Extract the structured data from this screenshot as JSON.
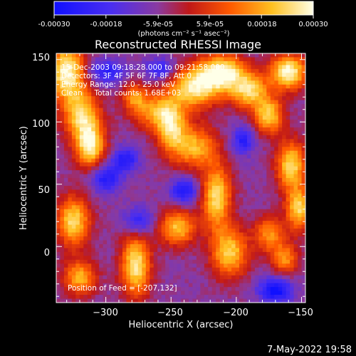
{
  "colorbar": {
    "tick_labels": [
      "-0.00030",
      "-0.00018",
      "-5.9e-05",
      "5.9e-05",
      "0.00018",
      "0.00030"
    ],
    "tick_values": [
      -0.0003,
      -0.00018,
      -5.9e-05,
      5.9e-05,
      0.00018,
      0.0003
    ],
    "range": [
      -0.0003,
      0.0003
    ],
    "unit_label": "(photons cm⁻² s⁻¹ asec⁻²)"
  },
  "info": {
    "time_range": "15-Dec-2003 09:18:28.000 to 09:21:58.000",
    "detectors": "Detectors: 3F 4F 5F 6F 7F 8F, Att 0",
    "energy_range": "Energy Range: 12.0 - 25.0 keV",
    "algorithm": "Clean     Total counts: 1.68E+03",
    "feed_position": "Position of Feed = [-207,132]"
  },
  "footer": {
    "timestamp": "7-May-2022 19:58"
  },
  "colors": {
    "frame": "#ffffff",
    "text": "#ffffff",
    "background": "#000000",
    "cmap": [
      "#1010ff",
      "#5a2be0",
      "#8a3aa0",
      "#e01010",
      "#ff7a00",
      "#ffd23a",
      "#ffffe0"
    ]
  },
  "chart_data": {
    "type": "heatmap",
    "title": "Reconstructed RHESSI Image",
    "xlabel": "Heliocentric X (arcsec)",
    "ylabel": "Heliocentric Y (arcsec)",
    "xlim": [
      -338,
      -147
    ],
    "ylim": [
      -45,
      155
    ],
    "x_ticks": [
      -300,
      -250,
      -200,
      -150
    ],
    "x_tick_labels": [
      "−300",
      "−250",
      "−200",
      "−150"
    ],
    "y_ticks": [
      0,
      50,
      100,
      150
    ],
    "y_tick_labels": [
      "0",
      "50",
      "100",
      "150"
    ],
    "grid": false,
    "colorbar_position": "top",
    "sources": [
      {
        "x": -330,
        "y": 140,
        "sx": 10,
        "sy": 16,
        "amp": 1.0
      },
      {
        "x": -318,
        "y": 105,
        "sx": 10,
        "sy": 14,
        "amp": 0.8
      },
      {
        "x": -312,
        "y": 80,
        "sx": 8,
        "sy": 12,
        "amp": 0.9
      },
      {
        "x": -325,
        "y": 20,
        "sx": 9,
        "sy": 14,
        "amp": 0.85
      },
      {
        "x": -320,
        "y": -25,
        "sx": 9,
        "sy": 10,
        "amp": 0.7
      },
      {
        "x": -277,
        "y": -15,
        "sx": 8,
        "sy": 18,
        "amp": 0.9
      },
      {
        "x": -278,
        "y": 120,
        "sx": 7,
        "sy": 8,
        "amp": 0.55
      },
      {
        "x": -262,
        "y": 108,
        "sx": 12,
        "sy": 10,
        "amp": 0.6
      },
      {
        "x": -250,
        "y": 95,
        "sx": 8,
        "sy": 14,
        "amp": 0.7
      },
      {
        "x": -232,
        "y": 128,
        "sx": 14,
        "sy": 12,
        "amp": 0.9
      },
      {
        "x": -232,
        "y": 80,
        "sx": 12,
        "sy": 12,
        "amp": 0.7
      },
      {
        "x": -210,
        "y": 140,
        "sx": 12,
        "sy": 10,
        "amp": 0.95
      },
      {
        "x": -190,
        "y": 125,
        "sx": 10,
        "sy": 10,
        "amp": 0.8
      },
      {
        "x": -175,
        "y": 105,
        "sx": 8,
        "sy": 10,
        "amp": 0.8
      },
      {
        "x": -160,
        "y": 140,
        "sx": 10,
        "sy": 10,
        "amp": 1.0
      },
      {
        "x": -158,
        "y": 65,
        "sx": 8,
        "sy": 14,
        "amp": 0.85
      },
      {
        "x": -152,
        "y": 30,
        "sx": 7,
        "sy": 12,
        "amp": 0.8
      },
      {
        "x": -215,
        "y": 40,
        "sx": 8,
        "sy": 18,
        "amp": 0.85
      },
      {
        "x": -205,
        "y": -5,
        "sx": 10,
        "sy": 14,
        "amp": 0.8
      },
      {
        "x": -245,
        "y": 15,
        "sx": 10,
        "sy": 10,
        "amp": 0.75
      },
      {
        "x": -175,
        "y": 10,
        "sx": 8,
        "sy": 10,
        "amp": 0.6
      },
      {
        "x": -163,
        "y": -10,
        "sx": 7,
        "sy": 9,
        "amp": 0.6
      },
      {
        "x": -300,
        "y": 55,
        "sx": 8,
        "sy": 8,
        "amp": -0.55
      },
      {
        "x": -240,
        "y": 45,
        "sx": 7,
        "sy": 7,
        "amp": -0.6
      },
      {
        "x": -275,
        "y": 20,
        "sx": 8,
        "sy": 8,
        "amp": -0.5
      },
      {
        "x": -170,
        "y": -35,
        "sx": 9,
        "sy": 7,
        "amp": -0.7
      },
      {
        "x": -300,
        "y": 140,
        "sx": 10,
        "sy": 7,
        "amp": -0.5
      },
      {
        "x": -258,
        "y": 142,
        "sx": 8,
        "sy": 6,
        "amp": -0.5
      },
      {
        "x": -285,
        "y": 70,
        "sx": 7,
        "sy": 7,
        "amp": -0.55
      },
      {
        "x": -195,
        "y": 85,
        "sx": 6,
        "sy": 8,
        "amp": -0.5
      }
    ]
  }
}
